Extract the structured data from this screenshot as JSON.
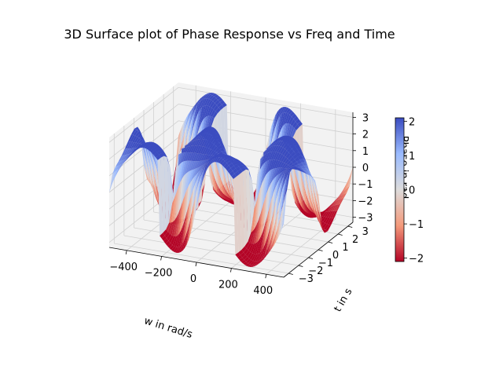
{
  "chart_data": {
    "type": "surface3d",
    "title": "3D Surface plot of Phase Response vs Freq and Time",
    "xlabel": "w in rad/s",
    "ylabel": "t in s",
    "zlabel": "Phase in rad",
    "xlim": [
      -500,
      500
    ],
    "ylim": [
      -3.5,
      3.5
    ],
    "zlim": [
      -3.3,
      3.3
    ],
    "x_ticks": [
      "−400",
      "−200",
      "0",
      "200",
      "400"
    ],
    "y_ticks": [
      "−3",
      "−2",
      "−1",
      "0",
      "1",
      "2",
      "3"
    ],
    "z_ticks": [
      "−3",
      "−2",
      "−1",
      "0",
      "1",
      "2",
      "3"
    ],
    "colorbar": {
      "colormap": "coolwarm",
      "range": [
        -2.1,
        2.1
      ],
      "ticks": [
        "−2",
        "−1",
        "0",
        "1",
        "2"
      ]
    },
    "colors": {
      "low": "#b40426",
      "mid": "#dddcdc",
      "high": "#3b4cc0",
      "pane": "#f2f2f2",
      "grid": "#d0d0d0"
    },
    "surface": {
      "w_range": [
        -500,
        500
      ],
      "t_range": [
        -3.5,
        3.5
      ],
      "description_values": "phase oscillates between -pi and pi"
    }
  }
}
